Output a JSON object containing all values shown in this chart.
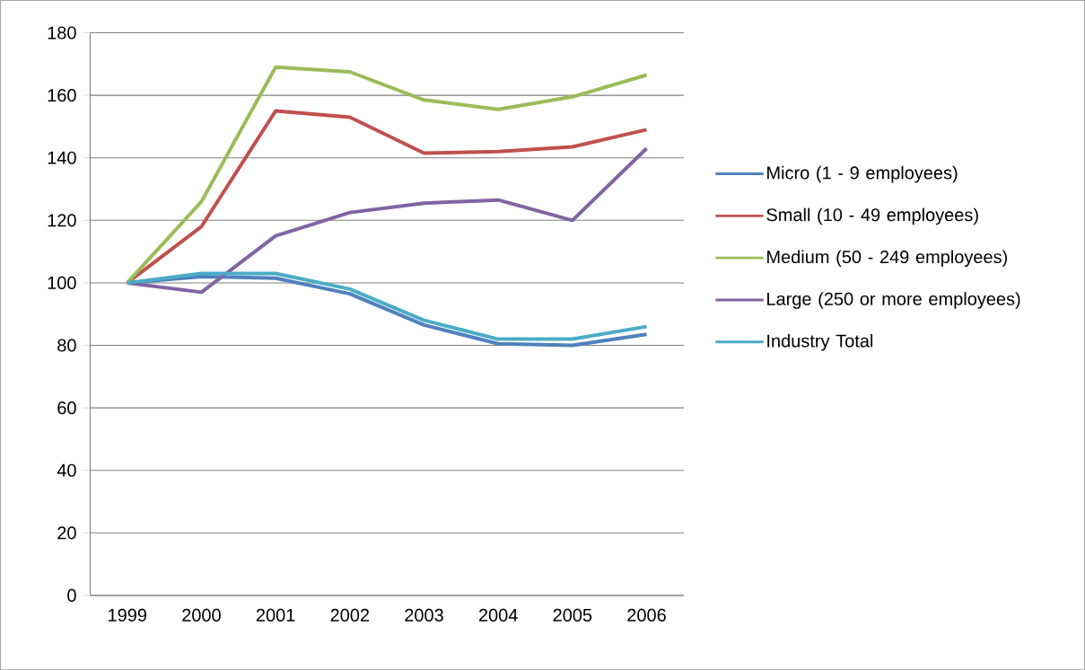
{
  "chart_data": {
    "type": "line",
    "categories": [
      "1999",
      "2000",
      "2001",
      "2002",
      "2003",
      "2004",
      "2005",
      "2006"
    ],
    "series": [
      {
        "name": "Micro (1 - 9 employees)",
        "color": "#4f81bd",
        "values": [
          100,
          102,
          101.5,
          96.5,
          86.5,
          80.5,
          80,
          83.5
        ]
      },
      {
        "name": "Small (10 - 49 employees)",
        "color": "#c0504d",
        "values": [
          100,
          118,
          155,
          153,
          141.5,
          142,
          143.5,
          149
        ]
      },
      {
        "name": "Medium (50 - 249 employees)",
        "color": "#9bbb59",
        "values": [
          100,
          126,
          169,
          167.5,
          158.5,
          155.5,
          159.5,
          166.5
        ]
      },
      {
        "name": "Large (250 or more employees)",
        "color": "#8064a2",
        "values": [
          100,
          97,
          115,
          122.5,
          125.5,
          126.5,
          120,
          143
        ]
      },
      {
        "name": "Industry Total",
        "color": "#4bacc6",
        "values": [
          100,
          103,
          103,
          98,
          88,
          82,
          82,
          86
        ]
      }
    ],
    "ylim": [
      0,
      180
    ],
    "yticks": [
      0,
      20,
      40,
      60,
      80,
      100,
      120,
      140,
      160,
      180
    ],
    "grid": "y",
    "legend": "right",
    "marker": "none",
    "line_style": "solid"
  }
}
